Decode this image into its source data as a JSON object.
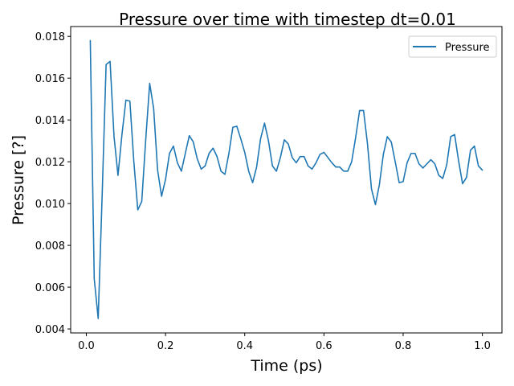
{
  "chart_data": {
    "type": "line",
    "title": "Pressure over time with timestep dt=0.01",
    "xlabel": "Time (ps)",
    "ylabel": "Pressure [?]",
    "xlim": [
      -0.0395,
      1.0495
    ],
    "ylim": [
      0.00381,
      0.01847
    ],
    "xticks": [
      0.0,
      0.2,
      0.4,
      0.6,
      0.8,
      1.0
    ],
    "xtick_labels": [
      "0.0",
      "0.2",
      "0.4",
      "0.6",
      "0.8",
      "1.0"
    ],
    "yticks": [
      0.004,
      0.006,
      0.008,
      0.01,
      0.012,
      0.014,
      0.016,
      0.018
    ],
    "ytick_labels": [
      "0.004",
      "0.006",
      "0.008",
      "0.010",
      "0.012",
      "0.014",
      "0.016",
      "0.018"
    ],
    "grid": false,
    "legend_position": "top-right",
    "series": [
      {
        "name": "Pressure",
        "color": "#1f77b4",
        "x": [
          0.01,
          0.02,
          0.03,
          0.04,
          0.05,
          0.06,
          0.07,
          0.08,
          0.09,
          0.1,
          0.11,
          0.12,
          0.13,
          0.14,
          0.15,
          0.16,
          0.17,
          0.18,
          0.19,
          0.2,
          0.21,
          0.22,
          0.23,
          0.24,
          0.25,
          0.26,
          0.27,
          0.28,
          0.29,
          0.3,
          0.31,
          0.32,
          0.33,
          0.34,
          0.35,
          0.36,
          0.37,
          0.38,
          0.39,
          0.4,
          0.41,
          0.42,
          0.43,
          0.44,
          0.45,
          0.46,
          0.47,
          0.48,
          0.49,
          0.5,
          0.51,
          0.52,
          0.53,
          0.54,
          0.55,
          0.56,
          0.57,
          0.58,
          0.59,
          0.6,
          0.61,
          0.62,
          0.63,
          0.64,
          0.65,
          0.66,
          0.67,
          0.68,
          0.69,
          0.7,
          0.71,
          0.72,
          0.73,
          0.74,
          0.75,
          0.76,
          0.77,
          0.78,
          0.79,
          0.8,
          0.81,
          0.82,
          0.83,
          0.84,
          0.85,
          0.86,
          0.87,
          0.88,
          0.89,
          0.9,
          0.91,
          0.92,
          0.93,
          0.94,
          0.95,
          0.96,
          0.97,
          0.98,
          0.99,
          1.0
        ],
        "y": [
          0.0178,
          0.0064,
          0.0045,
          0.0104,
          0.01665,
          0.0168,
          0.0132,
          0.01135,
          0.0133,
          0.01495,
          0.0149,
          0.012,
          0.0097,
          0.0101,
          0.01305,
          0.01575,
          0.01455,
          0.0116,
          0.01035,
          0.01115,
          0.0124,
          0.01275,
          0.01195,
          0.01155,
          0.0124,
          0.01325,
          0.01295,
          0.01215,
          0.01165,
          0.0118,
          0.0124,
          0.01265,
          0.01225,
          0.01155,
          0.0114,
          0.0124,
          0.01365,
          0.0137,
          0.0131,
          0.01245,
          0.01155,
          0.011,
          0.01175,
          0.0131,
          0.01385,
          0.013,
          0.0118,
          0.01155,
          0.0122,
          0.01305,
          0.01285,
          0.0122,
          0.01195,
          0.01225,
          0.01225,
          0.0118,
          0.01165,
          0.01195,
          0.01235,
          0.01245,
          0.0122,
          0.01195,
          0.01175,
          0.01175,
          0.01155,
          0.01155,
          0.012,
          0.01315,
          0.01445,
          0.01445,
          0.01285,
          0.0107,
          0.00995,
          0.0109,
          0.01235,
          0.0132,
          0.01295,
          0.012,
          0.011,
          0.01105,
          0.01195,
          0.0124,
          0.0124,
          0.0119,
          0.0117,
          0.0119,
          0.0121,
          0.0119,
          0.01135,
          0.0112,
          0.01185,
          0.0132,
          0.0133,
          0.01205,
          0.01095,
          0.01125,
          0.01255,
          0.01275,
          0.0118,
          0.0116
        ]
      }
    ]
  }
}
